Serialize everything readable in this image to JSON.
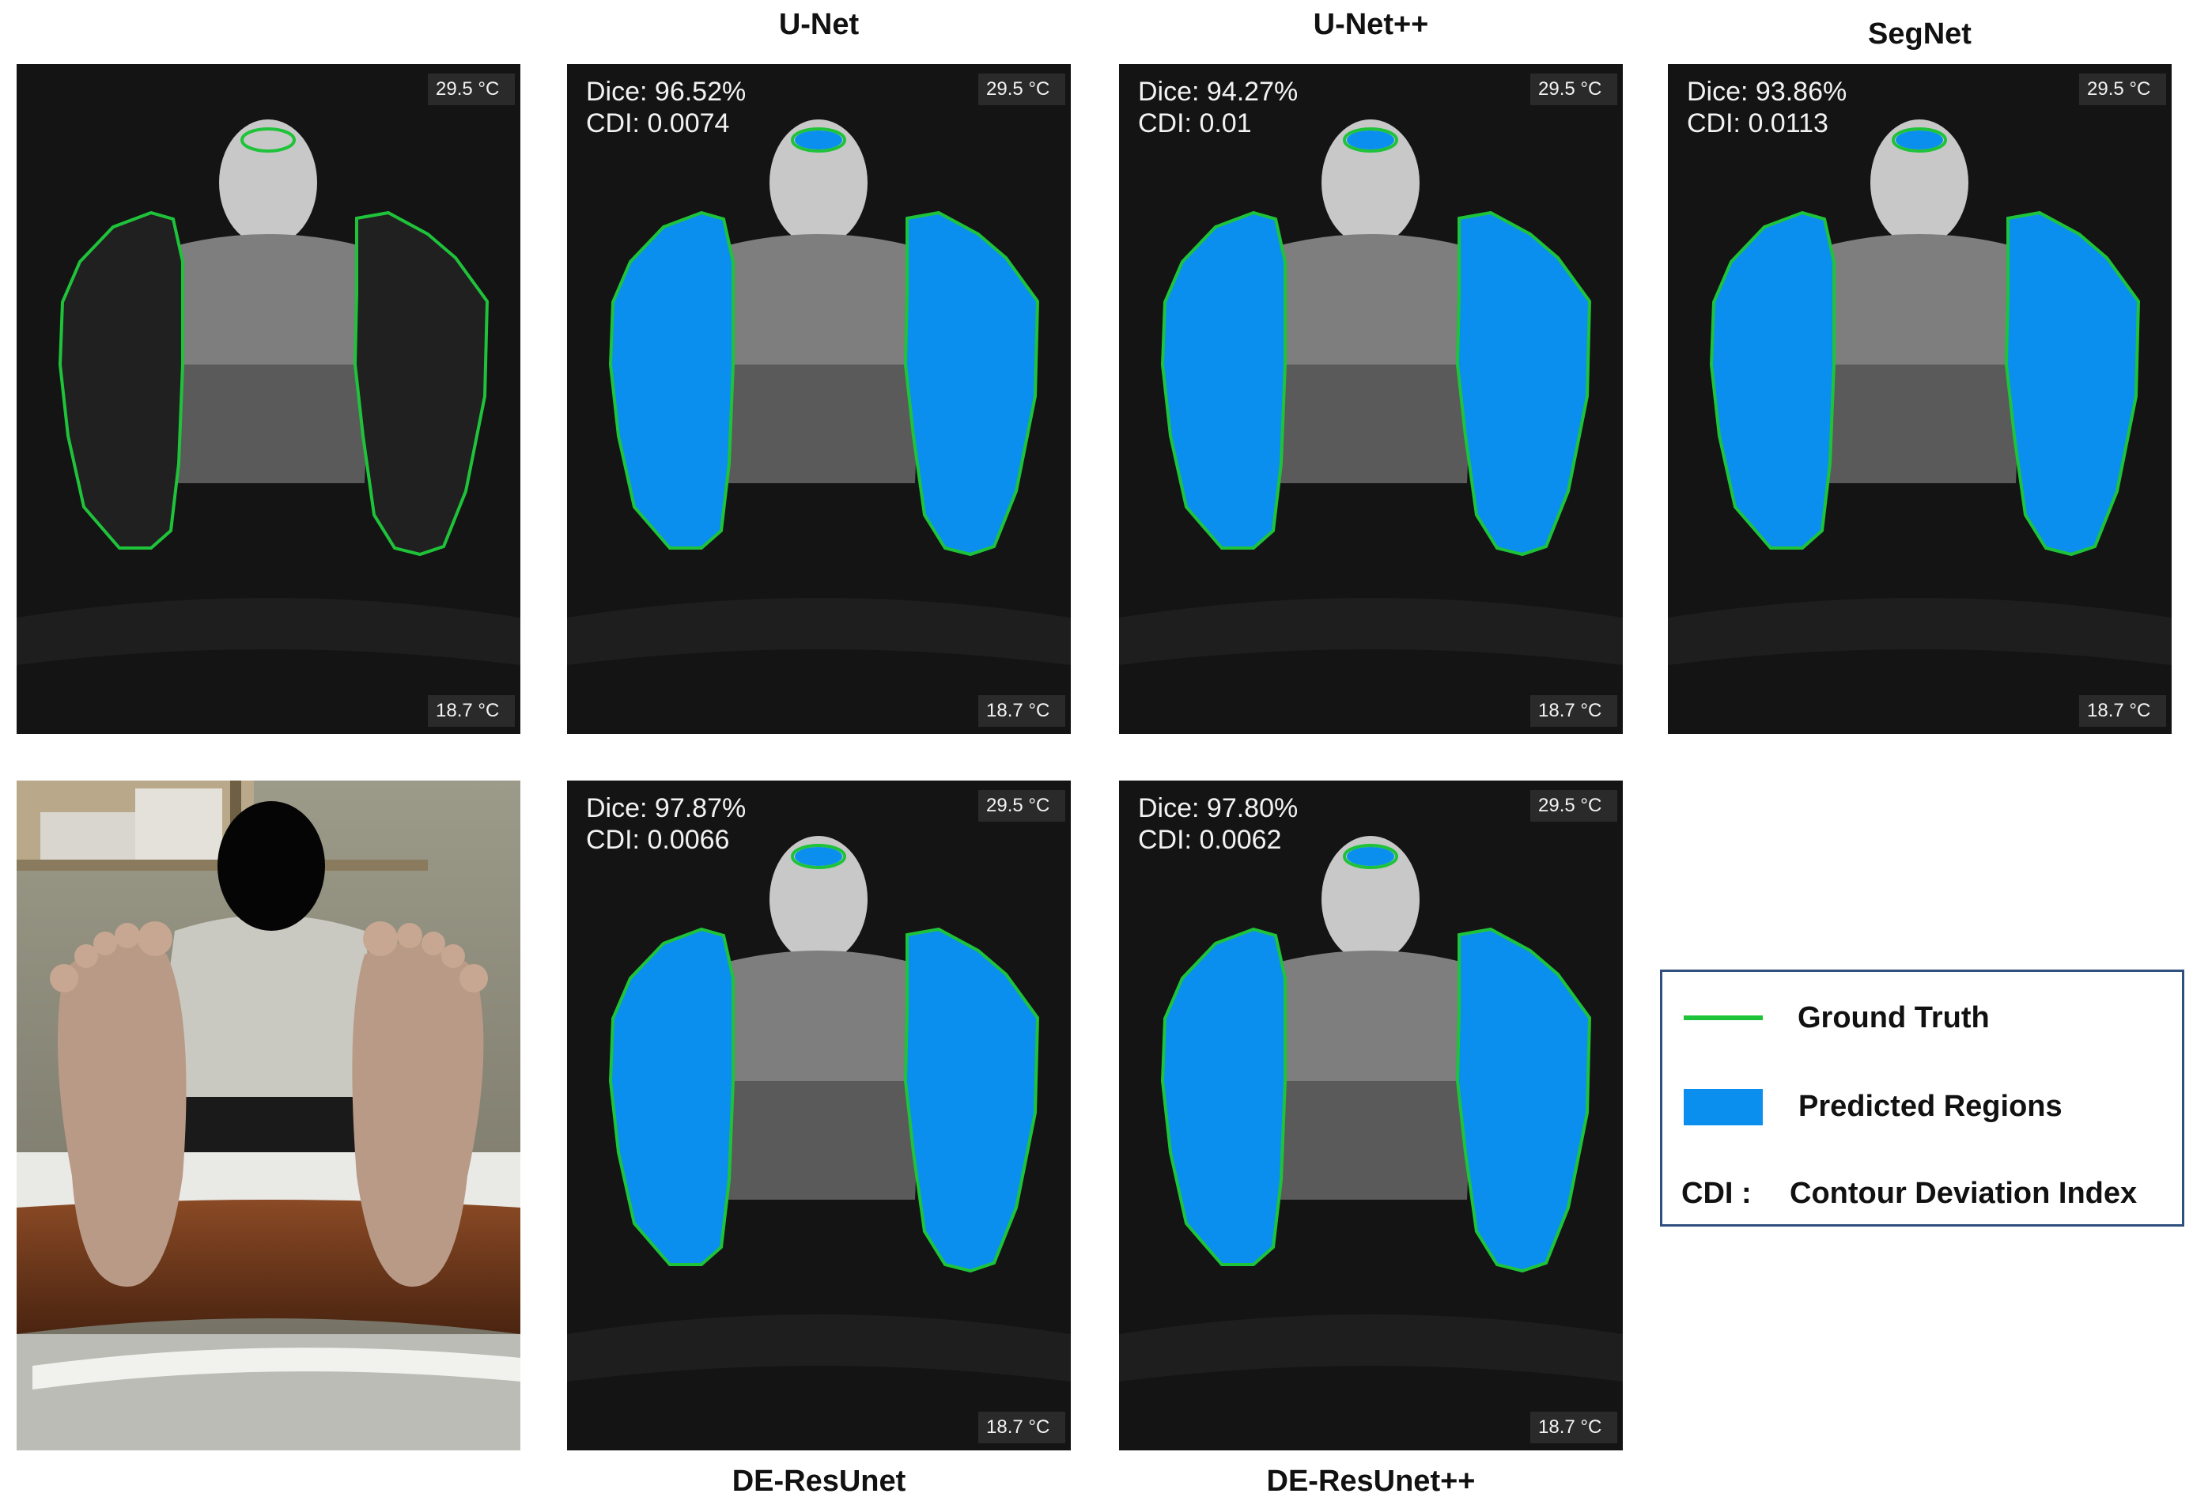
{
  "figure": {
    "columns": [
      "U-Net",
      "U-Net++",
      "SegNet"
    ],
    "bottom_labels": [
      "DE-ResUnet",
      "DE-ResUnet++"
    ]
  },
  "thermal_scale": {
    "max_label": "29.5 °C",
    "min_label": "18.7 °C"
  },
  "panels": [
    {
      "id": "ground-truth",
      "dice": "",
      "cdi": "",
      "predicted": false
    },
    {
      "id": "unet",
      "dice": "Dice: 96.52%",
      "cdi": "CDI: 0.0074",
      "predicted": true
    },
    {
      "id": "unetpp",
      "dice": "Dice: 94.27%",
      "cdi": "CDI: 0.01",
      "predicted": true
    },
    {
      "id": "segnet",
      "dice": "Dice: 93.86%",
      "cdi": "CDI: 0.0113",
      "predicted": true
    },
    {
      "id": "photo",
      "dice": "",
      "cdi": "",
      "predicted": false
    },
    {
      "id": "de-resunet",
      "dice": "Dice: 97.87%",
      "cdi": "CDI: 0.0066",
      "predicted": true
    },
    {
      "id": "de-resunetpp",
      "dice": "Dice: 97.80%",
      "cdi": "CDI: 0.0062",
      "predicted": true
    }
  ],
  "legend": {
    "ground_truth": "Ground Truth",
    "predicted": "Predicted Regions",
    "cdi_abbr": "CDI :",
    "cdi_full": "Contour Deviation Index"
  },
  "colors": {
    "ground_truth": "#1fc33a",
    "predicted": "#0a8fef",
    "thermal_background": "#141414"
  }
}
